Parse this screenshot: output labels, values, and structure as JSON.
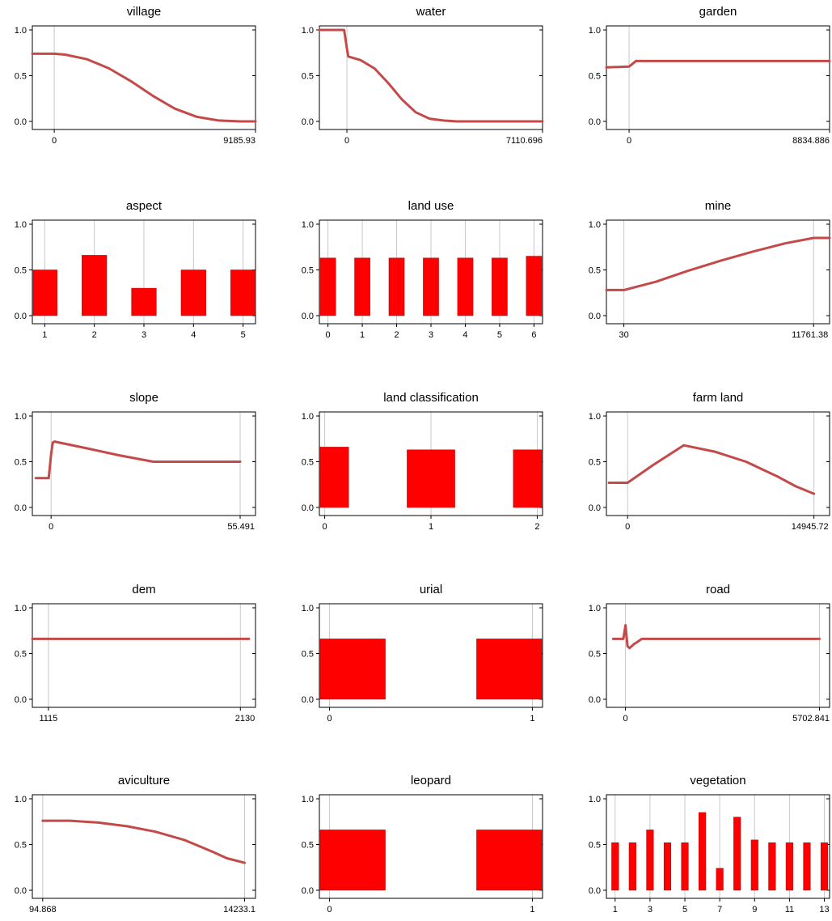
{
  "colors": {
    "line": "#c44a4a",
    "bar": "#ff0000",
    "bar_edge": "#b00000",
    "frame": "#000000",
    "grid": "#c8c8c8"
  },
  "chart_data": [
    {
      "type": "line",
      "title": "village",
      "ylim": [
        0,
        1
      ],
      "yticks": [
        "0.0",
        "0.5",
        "1.0"
      ],
      "xlim": [
        -1000,
        9185.93
      ],
      "xticks": [
        "0",
        "9185.93"
      ],
      "xtick_values": [
        0,
        9185.93
      ],
      "x": [
        -1000,
        0,
        500,
        1500,
        2500,
        3500,
        4500,
        5500,
        6500,
        7500,
        8500,
        9185.93
      ],
      "y": [
        0.74,
        0.74,
        0.73,
        0.68,
        0.58,
        0.44,
        0.28,
        0.14,
        0.05,
        0.01,
        0.0,
        0.0
      ]
    },
    {
      "type": "line",
      "title": "water",
      "ylim": [
        0,
        1
      ],
      "yticks": [
        "0.0",
        "0.5",
        "1.0"
      ],
      "xlim": [
        -1000,
        7110.696
      ],
      "xticks": [
        "0",
        "7110.696"
      ],
      "xtick_values": [
        0,
        7110.696
      ],
      "x": [
        -1000,
        -100,
        0,
        50,
        500,
        1000,
        1500,
        2000,
        2500,
        3000,
        3500,
        4000,
        5000,
        6000,
        7110.696
      ],
      "y": [
        1.0,
        1.0,
        0.8,
        0.71,
        0.67,
        0.58,
        0.42,
        0.24,
        0.1,
        0.03,
        0.01,
        0.0,
        0.0,
        0.0,
        0.0
      ]
    },
    {
      "type": "line",
      "title": "garden",
      "ylim": [
        0,
        1
      ],
      "yticks": [
        "0.0",
        "0.5",
        "1.0"
      ],
      "xlim": [
        -1000,
        8834.886
      ],
      "xticks": [
        "0",
        "8834.886"
      ],
      "xtick_values": [
        0,
        8834.886
      ],
      "x": [
        -1000,
        0,
        300,
        8834.886
      ],
      "y": [
        0.59,
        0.6,
        0.66,
        0.66
      ]
    },
    {
      "type": "bar",
      "title": "aspect",
      "ylim": [
        0,
        1
      ],
      "yticks": [
        "0.0",
        "0.5",
        "1.0"
      ],
      "xlim": [
        0.75,
        5.25
      ],
      "xticks": [
        "1",
        "2",
        "3",
        "4",
        "5"
      ],
      "xtick_values": [
        1,
        2,
        3,
        4,
        5
      ],
      "categories": [
        1,
        2,
        3,
        4,
        5
      ],
      "values": [
        0.5,
        0.66,
        0.3,
        0.5,
        0.5
      ],
      "bar_width": 0.5
    },
    {
      "type": "bar",
      "title": "land use",
      "ylim": [
        0,
        1
      ],
      "yticks": [
        "0.0",
        "0.5",
        "1.0"
      ],
      "xlim": [
        -0.25,
        6.25
      ],
      "xticks": [
        "0",
        "1",
        "2",
        "3",
        "4",
        "5",
        "6"
      ],
      "xtick_values": [
        0,
        1,
        2,
        3,
        4,
        5,
        6
      ],
      "categories": [
        0,
        1,
        2,
        3,
        4,
        5,
        6
      ],
      "values": [
        0.63,
        0.63,
        0.63,
        0.63,
        0.63,
        0.63,
        0.65
      ],
      "bar_width": 0.45
    },
    {
      "type": "line",
      "title": "mine",
      "ylim": [
        0,
        1
      ],
      "yticks": [
        "0.0",
        "0.5",
        "1.0"
      ],
      "xlim": [
        -1050,
        12750
      ],
      "xticks": [
        "30",
        "11761.38"
      ],
      "xtick_values": [
        30,
        11761.38
      ],
      "x": [
        -1050,
        30,
        2000,
        4000,
        6000,
        8000,
        10000,
        11761.38,
        12750
      ],
      "y": [
        0.28,
        0.28,
        0.37,
        0.49,
        0.6,
        0.7,
        0.79,
        0.85,
        0.85
      ]
    },
    {
      "type": "line",
      "title": "slope",
      "ylim": [
        0,
        1
      ],
      "yticks": [
        "0.0",
        "0.5",
        "1.0"
      ],
      "xlim": [
        -5.5,
        60
      ],
      "xticks": [
        "0",
        "55.491"
      ],
      "xtick_values": [
        0,
        55.491
      ],
      "x": [
        -4.5,
        -0.7,
        0,
        0.5,
        1,
        10,
        20,
        30,
        40,
        55.491
      ],
      "y": [
        0.32,
        0.32,
        0.58,
        0.71,
        0.72,
        0.65,
        0.57,
        0.5,
        0.5,
        0.5
      ]
    },
    {
      "type": "bar",
      "title": "land classification",
      "ylim": [
        0,
        1
      ],
      "yticks": [
        "0.0",
        "0.5",
        "1.0"
      ],
      "xlim": [
        -0.05,
        2.05
      ],
      "xticks": [
        "0",
        "1",
        "2"
      ],
      "xtick_values": [
        0,
        1,
        2
      ],
      "categories": [
        0,
        1,
        2
      ],
      "values": [
        0.66,
        0.63,
        0.63
      ],
      "bar_width": 0.45
    },
    {
      "type": "line",
      "title": "farm land",
      "ylim": [
        0,
        1
      ],
      "yticks": [
        "0.0",
        "0.5",
        "1.0"
      ],
      "xlim": [
        -1700,
        16200
      ],
      "xticks": [
        "0",
        "14945.72"
      ],
      "xtick_values": [
        0,
        14945.72
      ],
      "x": [
        -1500,
        0,
        2000,
        4500,
        7000,
        9500,
        12000,
        13500,
        14945.72
      ],
      "y": [
        0.27,
        0.27,
        0.46,
        0.68,
        0.61,
        0.5,
        0.34,
        0.23,
        0.15
      ]
    },
    {
      "type": "line",
      "title": "dem",
      "ylim": [
        0,
        1
      ],
      "yticks": [
        "0.0",
        "0.5",
        "1.0"
      ],
      "xlim": [
        1030,
        2210
      ],
      "xticks": [
        "1115",
        "2130"
      ],
      "xtick_values": [
        1115,
        2130
      ],
      "x": [
        1030,
        2175
      ],
      "y": [
        0.66,
        0.66
      ]
    },
    {
      "type": "bar",
      "title": "urial",
      "ylim": [
        0,
        1
      ],
      "yticks": [
        "0.0",
        "0.5",
        "1.0"
      ],
      "xlim": [
        -0.05,
        1.05
      ],
      "xticks": [
        "0",
        "1"
      ],
      "xtick_values": [
        0,
        1
      ],
      "categories": [
        0,
        1
      ],
      "values": [
        0.66,
        0.66
      ],
      "bar_width": 0.55
    },
    {
      "type": "line",
      "title": "road",
      "ylim": [
        0,
        1
      ],
      "yticks": [
        "0.0",
        "0.5",
        "1.0"
      ],
      "xlim": [
        -560,
        6000
      ],
      "xticks": [
        "0",
        "5702.841"
      ],
      "xtick_values": [
        0,
        5702.841
      ],
      "x": [
        -360,
        -60,
        0,
        60,
        120,
        240,
        480,
        5702.841
      ],
      "y": [
        0.66,
        0.66,
        0.81,
        0.58,
        0.56,
        0.6,
        0.66,
        0.66
      ]
    },
    {
      "type": "line",
      "title": "aviculture",
      "ylim": [
        0,
        1
      ],
      "yticks": [
        "0.0",
        "0.5",
        "1.0"
      ],
      "xlim": [
        -630,
        15000
      ],
      "xticks": [
        "94.868",
        "14233.1"
      ],
      "xtick_values": [
        94.868,
        14233.1
      ],
      "x": [
        94.868,
        2000,
        4000,
        6000,
        8000,
        10000,
        12000,
        13000,
        14233.1
      ],
      "y": [
        0.76,
        0.76,
        0.74,
        0.7,
        0.64,
        0.55,
        0.42,
        0.35,
        0.3
      ]
    },
    {
      "type": "bar",
      "title": "leopard",
      "ylim": [
        0,
        1
      ],
      "yticks": [
        "0.0",
        "0.5",
        "1.0"
      ],
      "xlim": [
        -0.05,
        1.05
      ],
      "xticks": [
        "0",
        "1"
      ],
      "xtick_values": [
        0,
        1
      ],
      "categories": [
        0,
        1
      ],
      "values": [
        0.66,
        0.66
      ],
      "bar_width": 0.55
    },
    {
      "type": "bar",
      "title": "vegetation",
      "ylim": [
        0,
        1
      ],
      "yticks": [
        "0.0",
        "0.5",
        "1.0"
      ],
      "xlim": [
        0.5,
        13.3
      ],
      "xticks": [
        "1",
        "3",
        "5",
        "7",
        "9",
        "11",
        "13"
      ],
      "xtick_values": [
        1,
        3,
        5,
        7,
        9,
        11,
        13
      ],
      "categories": [
        1,
        2,
        3,
        4,
        5,
        6,
        7,
        8,
        9,
        10,
        11,
        12,
        13
      ],
      "values": [
        0.52,
        0.52,
        0.66,
        0.52,
        0.52,
        0.85,
        0.24,
        0.8,
        0.55,
        0.52,
        0.52,
        0.52,
        0.52
      ],
      "bar_width": 0.4
    }
  ]
}
